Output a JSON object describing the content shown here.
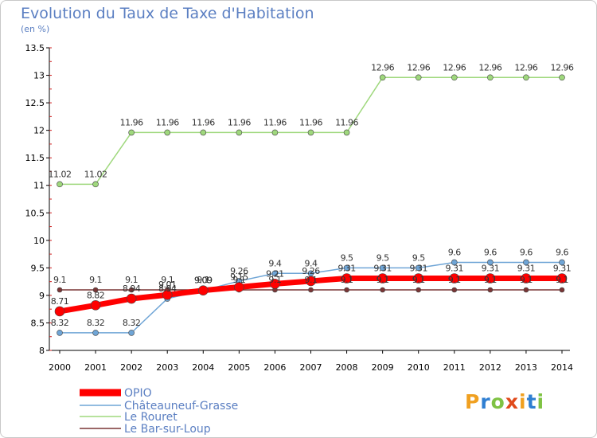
{
  "title": "Evolution du Taux de Taxe d'Habitation",
  "subtitle": "(en %)",
  "logo": "Proxiti",
  "chart_data": {
    "type": "line",
    "title": "Evolution du Taux de Taxe d'Habitation",
    "ylabel": "(en %)",
    "xlabel": "",
    "x": [
      2000,
      2001,
      2002,
      2003,
      2004,
      2005,
      2006,
      2007,
      2008,
      2009,
      2010,
      2011,
      2012,
      2013,
      2014
    ],
    "ylim": [
      8,
      13.5
    ],
    "yticks": [
      8,
      8.5,
      9,
      9.5,
      10,
      10.5,
      11,
      11.5,
      12,
      12.5,
      13,
      13.5
    ],
    "grid": false,
    "legend": "bottom-left",
    "series": [
      {
        "name": "OPIO",
        "color": "#ff0000",
        "values": [
          8.71,
          8.82,
          8.94,
          9.01,
          9.09,
          9.15,
          9.21,
          9.26,
          9.31,
          9.31,
          9.31,
          9.31,
          9.31,
          9.31,
          9.31
        ],
        "labels": [
          "8.71",
          "8.82",
          "8.94",
          "9.01",
          "9.09",
          "9.15",
          "9.21",
          "9.26",
          "9.31",
          "9.31",
          "9.31",
          "9.31",
          "9.31",
          "9.31",
          "9.31"
        ]
      },
      {
        "name": "Châteauneuf-Grasse",
        "color": "#6fa5d6",
        "values": [
          8.32,
          8.32,
          8.32,
          8.94,
          9.09,
          9.26,
          9.4,
          9.4,
          9.5,
          9.5,
          9.5,
          9.6,
          9.6,
          9.6,
          9.6
        ],
        "labels": [
          "8.32",
          "8.32",
          "8.32",
          "8.94",
          "9.09",
          "9.26",
          "9.4",
          "9.4",
          "9.5",
          "9.5",
          "9.5",
          "9.6",
          "9.6",
          "9.6",
          "9.6"
        ]
      },
      {
        "name": "Le Rouret",
        "color": "#9fd87d",
        "values": [
          11.02,
          11.02,
          11.96,
          11.96,
          11.96,
          11.96,
          11.96,
          11.96,
          11.96,
          12.96,
          12.96,
          12.96,
          12.96,
          12.96,
          12.96
        ],
        "labels": [
          "11.02",
          "11.02",
          "11.96",
          "11.96",
          "11.96",
          "11.96",
          "11.96",
          "11.96",
          "11.96",
          "12.96",
          "12.96",
          "12.96",
          "12.96",
          "12.96",
          "12.96"
        ]
      },
      {
        "name": "Le Bar-sur-Loup",
        "color": "#7a3535",
        "values": [
          9.1,
          9.1,
          9.1,
          9.1,
          9.1,
          9.1,
          9.1,
          9.1,
          9.1,
          9.1,
          9.1,
          9.1,
          9.1,
          9.1,
          9.1
        ],
        "labels": [
          "9.1",
          "9.1",
          "9.1",
          "9.1",
          "9.1",
          "9.1",
          "9.1",
          "9.1",
          "9.1",
          "9.1",
          "9.1",
          "9.1",
          "9.1",
          "9.1",
          "9.1"
        ]
      }
    ]
  }
}
